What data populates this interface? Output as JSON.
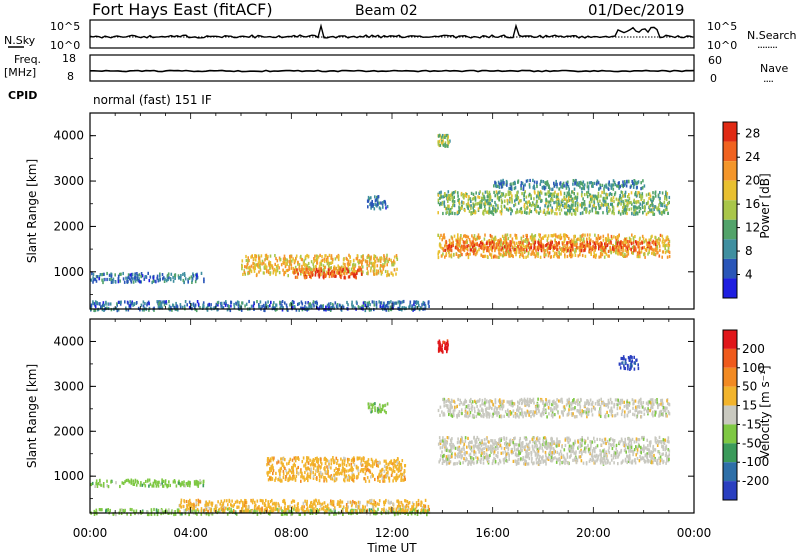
{
  "header": {
    "site": "Fort Hays East (fitACF)",
    "beam": "Beam 02",
    "date": "01/Dec/2019"
  },
  "noise_panel": {
    "left_label": "N.Sky",
    "left_ticks": [
      "10^5",
      "10^0"
    ],
    "right_ticks": [
      "10^5",
      "10^0"
    ],
    "right_label": "N.Search",
    "right_dotted_marker": "........"
  },
  "freq_panel": {
    "left_label_line1": "Freq.",
    "left_label_line2": "[MHz]",
    "left_ticks": [
      "18",
      "8"
    ],
    "right_ticks": [
      "60",
      "0"
    ],
    "right_label": "Nave",
    "right_dotted_marker": "....",
    "cpid_label": "CPID",
    "mode_text": "normal (fast) 151 IF"
  },
  "chart_data": [
    {
      "type": "heatmap",
      "title": "",
      "xlabel": "Time UT",
      "ylabel": "Slant Range [km]",
      "x_ticks": [
        "00:00",
        "04:00",
        "08:00",
        "12:00",
        "16:00",
        "20:00",
        "00:00"
      ],
      "x_range_hours": [
        0,
        24
      ],
      "y_ticks": [
        1000,
        2000,
        3000,
        4000
      ],
      "y_range_km": [
        180,
        4500
      ],
      "colorbar": {
        "label": "Power [dB]",
        "ticks": [
          "4",
          "8",
          "12",
          "16",
          "20",
          "24",
          "28"
        ],
        "range": [
          0,
          30
        ],
        "colors": [
          "#1f1fe0",
          "#2a56b8",
          "#3f8fa0",
          "#52a36a",
          "#a9c64a",
          "#e9c030",
          "#f4962a",
          "#f0621f",
          "#e02a14"
        ]
      },
      "regions": [
        {
          "t0": 0.0,
          "t1": 13.5,
          "r0": 180,
          "r1": 380,
          "level": 6
        },
        {
          "t0": 6.0,
          "t1": 12.2,
          "r0": 950,
          "r1": 1400,
          "level": 19
        },
        {
          "t0": 8.0,
          "t1": 10.8,
          "r0": 900,
          "r1": 1100,
          "level": 27
        },
        {
          "t0": 0.0,
          "t1": 4.5,
          "r0": 800,
          "r1": 1000,
          "level": 6
        },
        {
          "t0": 13.8,
          "t1": 23.0,
          "r0": 1350,
          "r1": 1850,
          "level": 20
        },
        {
          "t0": 14.0,
          "t1": 22.5,
          "r0": 1500,
          "r1": 1700,
          "level": 27
        },
        {
          "t0": 13.8,
          "t1": 23.0,
          "r0": 2300,
          "r1": 2800,
          "level": 13
        },
        {
          "t0": 16.0,
          "t1": 22.0,
          "r0": 2850,
          "r1": 3050,
          "level": 8
        },
        {
          "t0": 11.0,
          "t1": 11.8,
          "r0": 2400,
          "r1": 2700,
          "level": 6
        },
        {
          "t0": 13.8,
          "t1": 14.3,
          "r0": 3800,
          "r1": 4050,
          "level": 14
        }
      ]
    },
    {
      "type": "heatmap",
      "title": "",
      "xlabel": "Time UT",
      "ylabel": "Slant Range [km]",
      "x_ticks": [
        "00:00",
        "04:00",
        "08:00",
        "12:00",
        "16:00",
        "20:00",
        "00:00"
      ],
      "x_range_hours": [
        0,
        24
      ],
      "y_ticks": [
        1000,
        2000,
        3000,
        4000
      ],
      "y_range_km": [
        180,
        4500
      ],
      "colorbar": {
        "label": "Velocity [m s⁻¹]",
        "ticks": [
          "200",
          "100",
          "50",
          "15",
          "-15",
          "-50",
          "-100",
          "-200"
        ],
        "colors": [
          "#2a3fc0",
          "#2e6fa8",
          "#3a9a5a",
          "#7ec843",
          "#c9c9c0",
          "#f2b42c",
          "#f28a22",
          "#ef5a1c",
          "#e0161a"
        ]
      },
      "regions": [
        {
          "t0": 0.0,
          "t1": 13.5,
          "r0": 180,
          "r1": 300,
          "level": 3
        },
        {
          "t0": 3.5,
          "t1": 13.5,
          "r0": 240,
          "r1": 500,
          "level": 5
        },
        {
          "t0": 7.0,
          "t1": 12.5,
          "r0": 920,
          "r1": 1450,
          "level": 5
        },
        {
          "t0": 0.0,
          "t1": 4.5,
          "r0": 800,
          "r1": 950,
          "level": 3
        },
        {
          "t0": 13.8,
          "t1": 23.0,
          "r0": 1300,
          "r1": 1900,
          "level": 4
        },
        {
          "t0": 13.8,
          "t1": 23.0,
          "r0": 2350,
          "r1": 2750,
          "level": 4
        },
        {
          "t0": 11.0,
          "t1": 11.8,
          "r0": 2450,
          "r1": 2650,
          "level": 3
        },
        {
          "t0": 13.8,
          "t1": 14.2,
          "r0": 3800,
          "r1": 4050,
          "level": 8
        },
        {
          "t0": 21.0,
          "t1": 21.8,
          "r0": 3400,
          "r1": 3700,
          "level": 0
        }
      ]
    }
  ]
}
